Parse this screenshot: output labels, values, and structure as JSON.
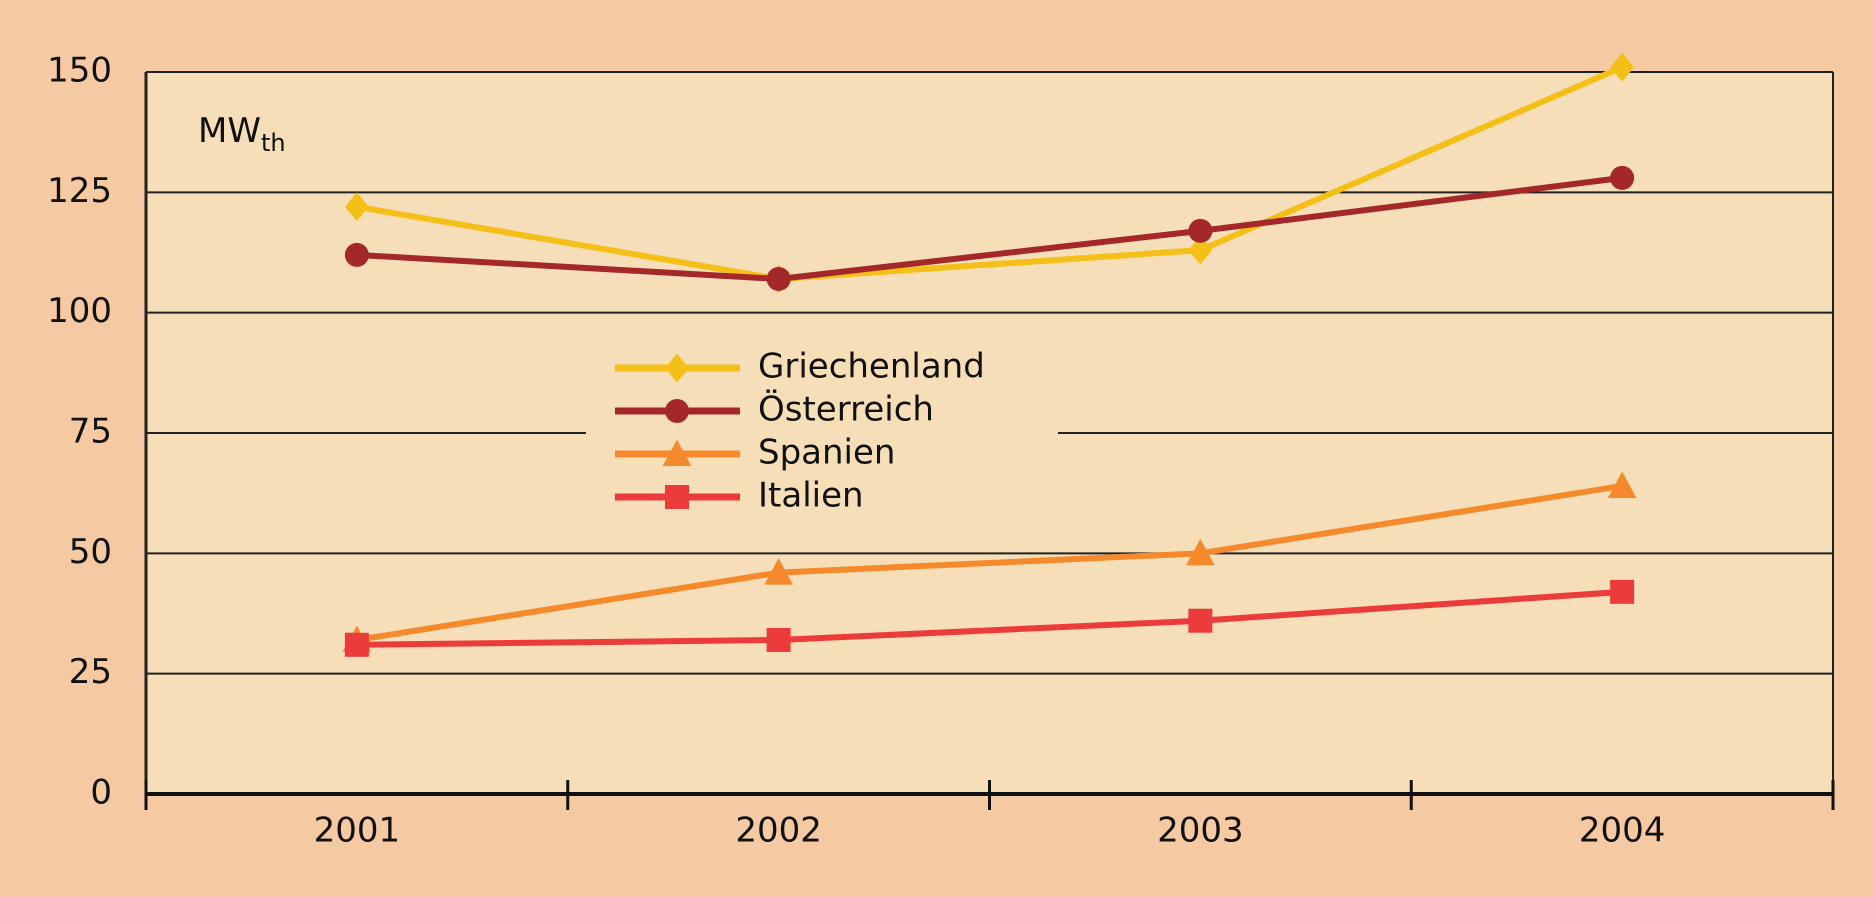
{
  "chart_data": {
    "type": "line",
    "y_unit": "MW",
    "y_unit_sub": "th",
    "categories": [
      "2001",
      "2002",
      "2003",
      "2004"
    ],
    "ylim": [
      0,
      150
    ],
    "yticks": [
      0,
      25,
      50,
      75,
      100,
      125,
      150
    ],
    "grid": true,
    "legend": "center",
    "series": [
      {
        "name": "Griechenland",
        "color": "#f4bf17",
        "marker": "diamond",
        "values": [
          122,
          107,
          113,
          151
        ]
      },
      {
        "name": "Österreich",
        "color": "#a4282a",
        "marker": "circle",
        "values": [
          112,
          107,
          117,
          128
        ]
      },
      {
        "name": "Spanien",
        "color": "#f58a2c",
        "marker": "triangle",
        "values": [
          32,
          46,
          50,
          64
        ]
      },
      {
        "name": "Italien",
        "color": "#ec3b3b",
        "marker": "square",
        "values": [
          31,
          32,
          36,
          42
        ]
      }
    ]
  }
}
